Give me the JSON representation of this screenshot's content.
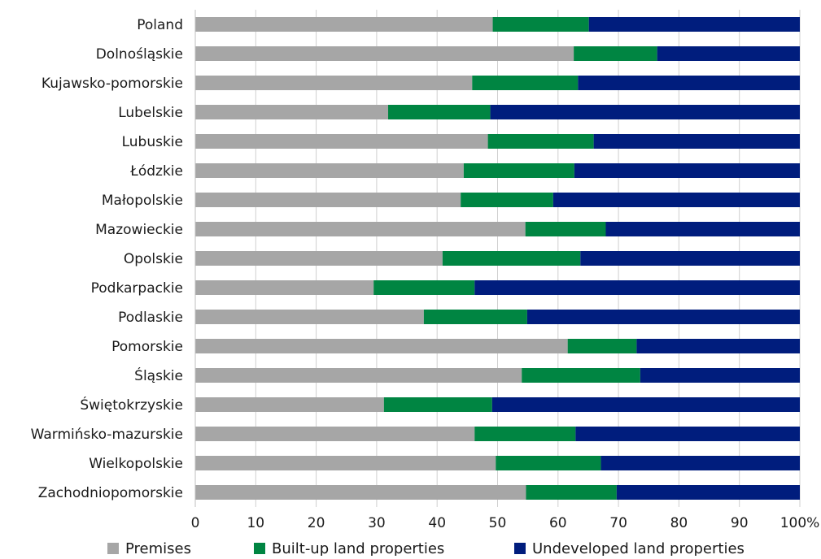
{
  "chart_data": {
    "type": "bar",
    "orientation": "horizontal",
    "stacked": true,
    "percent_axis": true,
    "categories": [
      "Poland",
      "Dolnośląskie",
      "Kujawsko-pomorskie",
      "Lubelskie",
      "Lubuskie",
      "Łódzkie",
      "Małopolskie",
      "Mazowieckie",
      "Opolskie",
      "Podkarpackie",
      "Podlaskie",
      "Pomorskie",
      "Śląskie",
      "Świętokrzyskie",
      "Warmińsko-mazurskie",
      "Wielkopolskie",
      "Zachodniopomorskie"
    ],
    "series": [
      {
        "name": "Premises",
        "color": "#a6a6a6",
        "values": [
          49.2,
          62.6,
          45.8,
          31.9,
          48.4,
          44.4,
          43.9,
          54.6,
          40.9,
          29.5,
          37.8,
          61.6,
          54.0,
          31.2,
          46.2,
          49.7,
          54.7
        ]
      },
      {
        "name": "Built-up land properties",
        "color": "#008542",
        "values": [
          15.9,
          13.8,
          17.5,
          16.9,
          17.5,
          18.3,
          15.3,
          13.3,
          22.8,
          16.7,
          17.1,
          11.4,
          19.6,
          17.9,
          16.7,
          17.4,
          15.0
        ]
      },
      {
        "name": "Undeveloped land properties",
        "color": "#001d7d",
        "values": [
          34.9,
          23.6,
          36.7,
          51.2,
          34.1,
          37.3,
          40.8,
          32.1,
          36.3,
          53.8,
          45.1,
          27.0,
          26.4,
          50.9,
          37.1,
          32.9,
          30.3
        ]
      }
    ],
    "xticks": [
      "0",
      "10",
      "20",
      "30",
      "40",
      "50",
      "60",
      "70",
      "80",
      "90",
      "100%"
    ],
    "xlim": [
      0,
      100
    ],
    "grid": true,
    "legend_position": "bottom",
    "title": "",
    "xlabel": "",
    "ylabel": ""
  }
}
